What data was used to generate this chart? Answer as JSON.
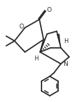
{
  "bg_color": "#ffffff",
  "line_color": "#2a2a2a",
  "lw": 1.3,
  "figsize": [
    1.2,
    1.47
  ],
  "dpi": 100,
  "xlim": [
    0,
    120
  ],
  "ylim": [
    0,
    147
  ]
}
